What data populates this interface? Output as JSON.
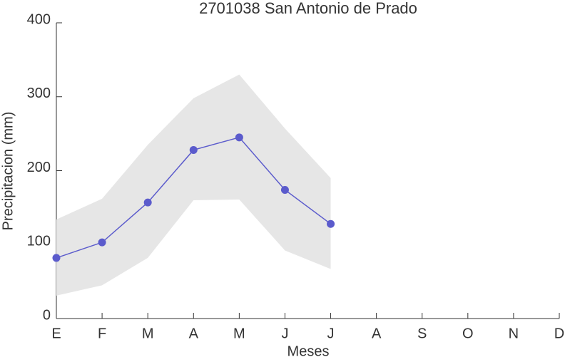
{
  "chart_data": {
    "type": "line",
    "title": "2701038 San Antonio de Prado",
    "xlabel": "Meses",
    "ylabel": "Precipitacion (mm)",
    "categories": [
      "E",
      "F",
      "M",
      "A",
      "M",
      "J",
      "J",
      "A",
      "S",
      "O",
      "N",
      "D"
    ],
    "series": [
      {
        "name": "Precipitacion",
        "color": "#5b5bcc",
        "values": [
          82,
          103,
          157,
          228,
          245,
          174,
          128,
          null,
          null,
          null,
          null,
          null
        ]
      }
    ],
    "band": {
      "color": "#e6e6e6",
      "upper": [
        134,
        162,
        235,
        298,
        330,
        257,
        190,
        null,
        null,
        null,
        null,
        null
      ],
      "lower": [
        31,
        45,
        82,
        160,
        161,
        92,
        67,
        null,
        null,
        null,
        null,
        null
      ]
    },
    "ylim": [
      0,
      400
    ],
    "yticks": [
      0,
      100,
      200,
      300,
      400
    ]
  }
}
